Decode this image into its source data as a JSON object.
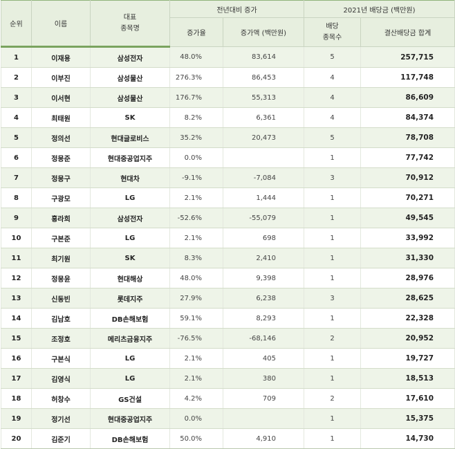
{
  "headers": {
    "rank": "순위",
    "name": "이름",
    "stock_line1": "대표",
    "stock_line2": "종목명",
    "yoy_group": "전년대비 증가",
    "rate": "증가율",
    "amount": "증가액 (백만원)",
    "div_group": "2021년 배당금 (백만원)",
    "count_line1": "배당",
    "count_line2": "종목수",
    "total": "결산배당금 합계"
  },
  "rows": [
    {
      "rank": "1",
      "name": "이재용",
      "stock": "삼성전자",
      "rate": "48.0%",
      "amount": "83,614",
      "count": "5",
      "total": "257,715"
    },
    {
      "rank": "2",
      "name": "이부진",
      "stock": "삼성물산",
      "rate": "276.3%",
      "amount": "86,453",
      "count": "4",
      "total": "117,748"
    },
    {
      "rank": "3",
      "name": "이서현",
      "stock": "삼성물산",
      "rate": "176.7%",
      "amount": "55,313",
      "count": "4",
      "total": "86,609"
    },
    {
      "rank": "4",
      "name": "최태원",
      "stock": "SK",
      "rate": "8.2%",
      "amount": "6,361",
      "count": "4",
      "total": "84,374"
    },
    {
      "rank": "5",
      "name": "정의선",
      "stock": "현대글로비스",
      "rate": "35.2%",
      "amount": "20,473",
      "count": "5",
      "total": "78,708"
    },
    {
      "rank": "6",
      "name": "정몽준",
      "stock": "현대중공업지주",
      "rate": "0.0%",
      "amount": "",
      "count": "1",
      "total": "77,742"
    },
    {
      "rank": "7",
      "name": "정몽구",
      "stock": "현대차",
      "rate": "-9.1%",
      "amount": "-7,084",
      "count": "3",
      "total": "70,912"
    },
    {
      "rank": "8",
      "name": "구광모",
      "stock": "LG",
      "rate": "2.1%",
      "amount": "1,444",
      "count": "1",
      "total": "70,271"
    },
    {
      "rank": "9",
      "name": "홍라희",
      "stock": "삼성전자",
      "rate": "-52.6%",
      "amount": "-55,079",
      "count": "1",
      "total": "49,545"
    },
    {
      "rank": "10",
      "name": "구본준",
      "stock": "LG",
      "rate": "2.1%",
      "amount": "698",
      "count": "1",
      "total": "33,992"
    },
    {
      "rank": "11",
      "name": "최기원",
      "stock": "SK",
      "rate": "8.3%",
      "amount": "2,410",
      "count": "1",
      "total": "31,330"
    },
    {
      "rank": "12",
      "name": "정몽윤",
      "stock": "현대해상",
      "rate": "48.0%",
      "amount": "9,398",
      "count": "1",
      "total": "28,976"
    },
    {
      "rank": "13",
      "name": "신동빈",
      "stock": "롯데지주",
      "rate": "27.9%",
      "amount": "6,238",
      "count": "3",
      "total": "28,625"
    },
    {
      "rank": "14",
      "name": "김남호",
      "stock": "DB손해보험",
      "rate": "59.1%",
      "amount": "8,293",
      "count": "1",
      "total": "22,328"
    },
    {
      "rank": "15",
      "name": "조정호",
      "stock": "메리츠금융지주",
      "rate": "-76.5%",
      "amount": "-68,146",
      "count": "2",
      "total": "20,952"
    },
    {
      "rank": "16",
      "name": "구본식",
      "stock": "LG",
      "rate": "2.1%",
      "amount": "405",
      "count": "1",
      "total": "19,727"
    },
    {
      "rank": "17",
      "name": "김영식",
      "stock": "LG",
      "rate": "2.1%",
      "amount": "380",
      "count": "1",
      "total": "18,513"
    },
    {
      "rank": "18",
      "name": "허창수",
      "stock": "GS건설",
      "rate": "4.2%",
      "amount": "709",
      "count": "2",
      "total": "17,610"
    },
    {
      "rank": "19",
      "name": "정기선",
      "stock": "현대중공업지주",
      "rate": "0.0%",
      "amount": "",
      "count": "1",
      "total": "15,375"
    },
    {
      "rank": "20",
      "name": "김준기",
      "stock": "DB손해보험",
      "rate": "50.0%",
      "amount": "4,910",
      "count": "1",
      "total": "14,730"
    }
  ]
}
